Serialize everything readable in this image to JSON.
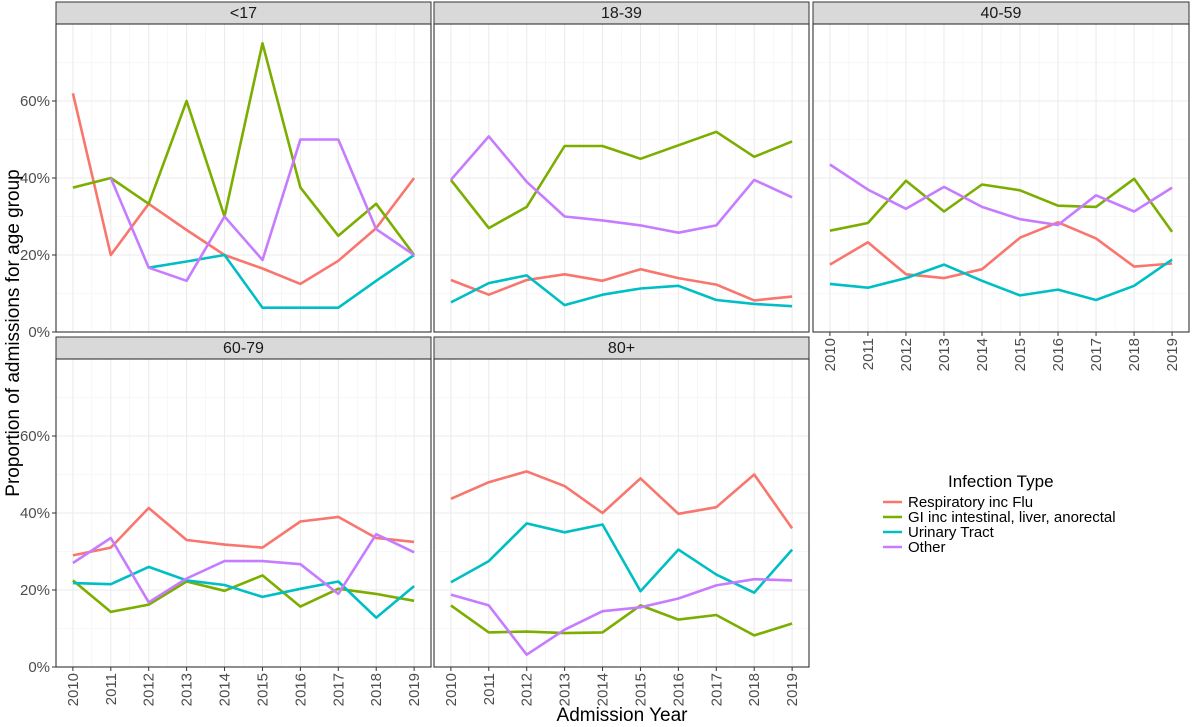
{
  "chart_data": {
    "type": "line",
    "xlabel": "Admission Year",
    "ylabel": "Proportion of admissions for age group",
    "ylim": [
      0,
      0.8
    ],
    "y_ticks": [
      "0%",
      "20%",
      "40%",
      "60%"
    ],
    "x": [
      "2010",
      "2011",
      "2012",
      "2013",
      "2014",
      "2015",
      "2016",
      "2017",
      "2018",
      "2019"
    ],
    "legend": {
      "title": "Infection Type",
      "position": "right",
      "entries": [
        "Respiratory inc Flu",
        "GI inc intestinal, liver, anorectal",
        "Urinary Tract",
        "Other"
      ]
    },
    "colors": {
      "Respiratory inc Flu": "#F8766D",
      "GI inc intestinal, liver, anorectal": "#7CAE00",
      "Urinary Tract": "#00BFC4",
      "Other": "#C77CFF"
    },
    "facets": [
      {
        "label": "<17",
        "series": [
          {
            "name": "Respiratory inc Flu",
            "values": [
              0.62,
              0.2,
              0.333,
              0.265,
              0.2,
              0.165,
              0.125,
              0.185,
              0.27,
              0.4
            ]
          },
          {
            "name": "GI inc intestinal, liver, anorectal",
            "values": [
              0.375,
              0.4,
              0.333,
              0.6,
              0.3,
              0.75,
              0.375,
              0.25,
              0.333,
              0.2
            ]
          },
          {
            "name": "Urinary Tract",
            "values": [
              null,
              null,
              0.167,
              0.183,
              0.2,
              0.063,
              0.063,
              0.063,
              0.133,
              0.2
            ]
          },
          {
            "name": "Other",
            "values": [
              null,
              0.4,
              0.167,
              0.133,
              0.3,
              0.187,
              0.5,
              0.5,
              0.267,
              0.2
            ]
          }
        ]
      },
      {
        "label": "18-39",
        "series": [
          {
            "name": "Respiratory inc Flu",
            "values": [
              0.135,
              0.097,
              0.135,
              0.15,
              0.133,
              0.163,
              0.14,
              0.123,
              0.082,
              0.092
            ]
          },
          {
            "name": "GI inc intestinal, liver, anorectal",
            "values": [
              0.395,
              0.27,
              0.325,
              0.483,
              0.483,
              0.45,
              0.485,
              0.52,
              0.455,
              0.495
            ]
          },
          {
            "name": "Urinary Tract",
            "values": [
              0.077,
              0.127,
              0.147,
              0.07,
              0.097,
              0.113,
              0.12,
              0.083,
              0.073,
              0.067
            ]
          },
          {
            "name": "Other",
            "values": [
              0.395,
              0.508,
              0.39,
              0.3,
              0.29,
              0.277,
              0.258,
              0.277,
              0.395,
              0.35
            ]
          }
        ]
      },
      {
        "label": "40-59",
        "series": [
          {
            "name": "Respiratory inc Flu",
            "values": [
              0.175,
              0.233,
              0.15,
              0.14,
              0.163,
              0.245,
              0.285,
              0.243,
              0.17,
              0.178
            ]
          },
          {
            "name": "GI inc intestinal, liver, anorectal",
            "values": [
              0.263,
              0.283,
              0.393,
              0.313,
              0.383,
              0.368,
              0.328,
              0.325,
              0.398,
              0.26
            ]
          },
          {
            "name": "Urinary Tract",
            "values": [
              0.125,
              0.115,
              0.14,
              0.175,
              0.133,
              0.095,
              0.11,
              0.083,
              0.12,
              0.188
            ]
          },
          {
            "name": "Other",
            "values": [
              0.435,
              0.37,
              0.32,
              0.377,
              0.325,
              0.293,
              0.278,
              0.355,
              0.313,
              0.375
            ]
          }
        ]
      },
      {
        "label": "60-79",
        "series": [
          {
            "name": "Respiratory inc Flu",
            "values": [
              0.29,
              0.31,
              0.413,
              0.33,
              0.318,
              0.31,
              0.378,
              0.39,
              0.335,
              0.325
            ]
          },
          {
            "name": "GI inc intestinal, liver, anorectal",
            "values": [
              0.225,
              0.143,
              0.162,
              0.222,
              0.198,
              0.238,
              0.157,
              0.203,
              0.19,
              0.172
            ]
          },
          {
            "name": "Urinary Tract",
            "values": [
              0.218,
              0.215,
              0.26,
              0.225,
              0.213,
              0.182,
              0.203,
              0.222,
              0.128,
              0.21
            ]
          },
          {
            "name": "Other",
            "values": [
              0.27,
              0.335,
              0.168,
              0.23,
              0.275,
              0.275,
              0.267,
              0.19,
              0.345,
              0.298
            ]
          }
        ]
      },
      {
        "label": "80+",
        "series": [
          {
            "name": "Respiratory inc Flu",
            "values": [
              0.437,
              0.48,
              0.508,
              0.47,
              0.4,
              0.49,
              0.398,
              0.415,
              0.5,
              0.36
            ]
          },
          {
            "name": "GI inc intestinal, liver, anorectal",
            "values": [
              0.16,
              0.09,
              0.092,
              0.088,
              0.09,
              0.16,
              0.123,
              0.135,
              0.082,
              0.113
            ]
          },
          {
            "name": "Urinary Tract",
            "values": [
              0.22,
              0.275,
              0.373,
              0.35,
              0.37,
              0.197,
              0.305,
              0.24,
              0.193,
              0.305
            ]
          },
          {
            "name": "Other",
            "values": [
              0.188,
              0.16,
              0.032,
              0.097,
              0.145,
              0.155,
              0.178,
              0.212,
              0.228,
              0.225
            ]
          }
        ]
      }
    ]
  }
}
